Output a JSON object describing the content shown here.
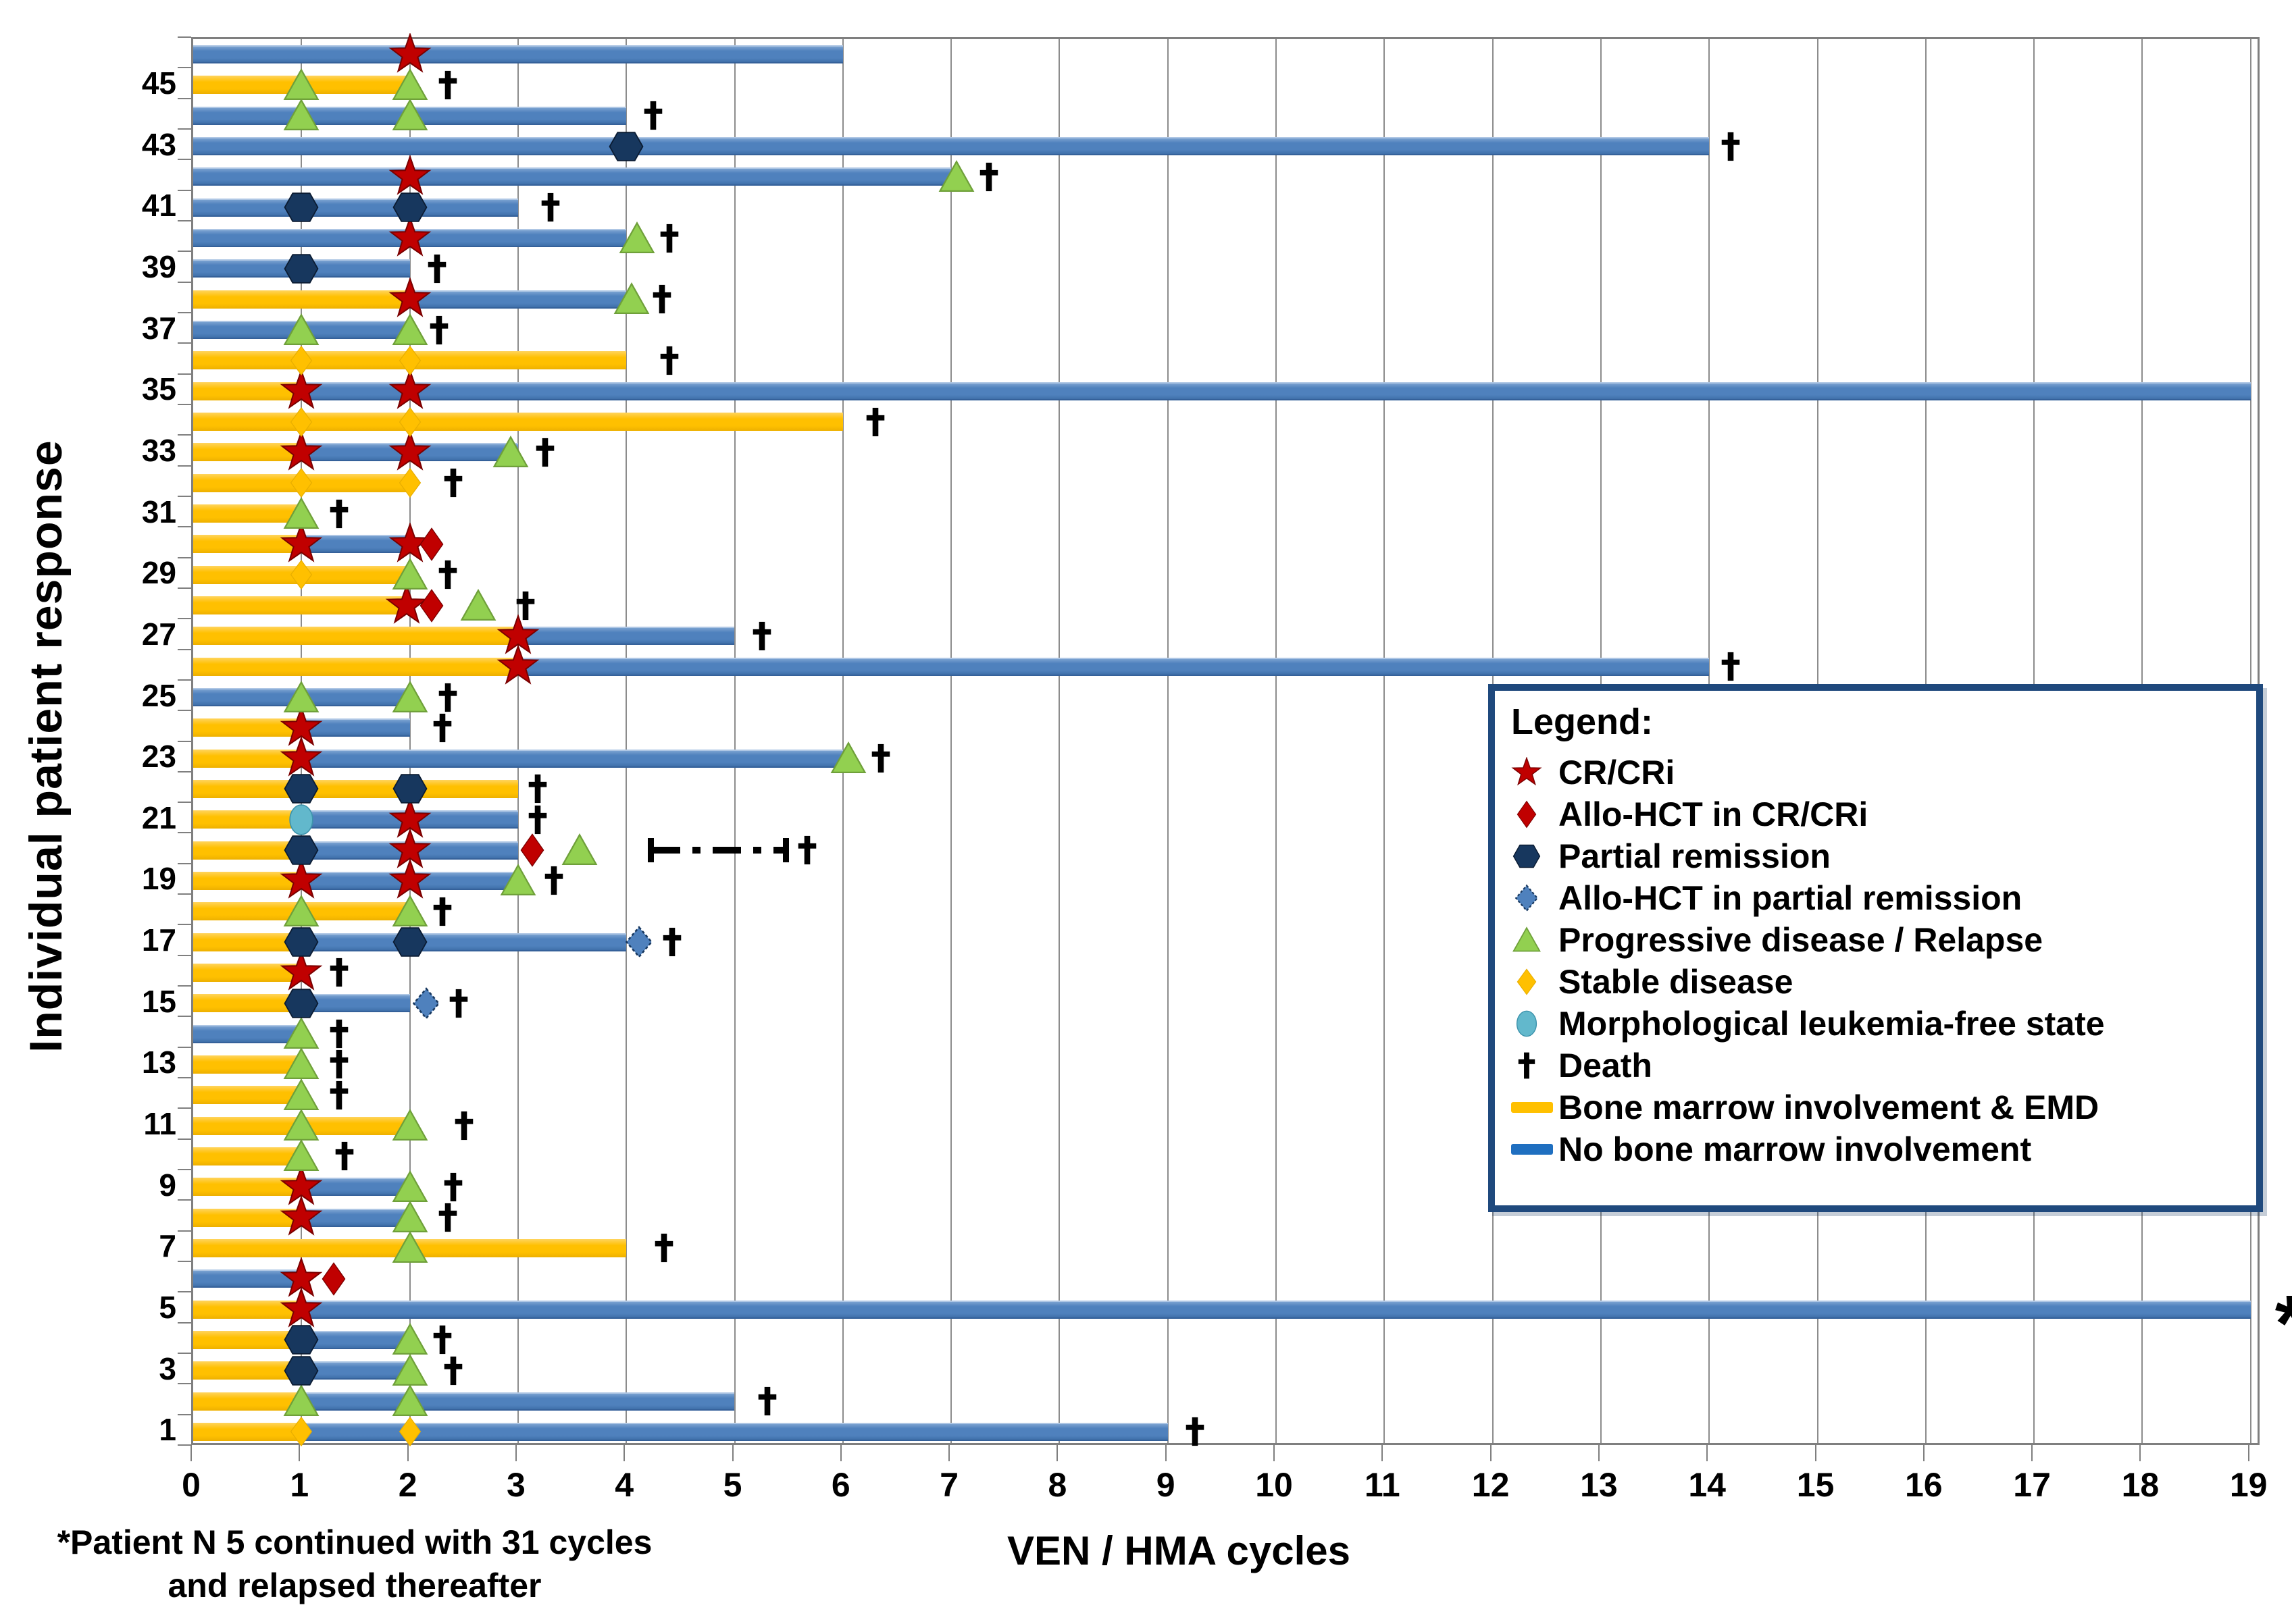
{
  "chart_data": {
    "type": "bar",
    "variant": "swimmer-plot",
    "title": "",
    "xlabel": "VEN / HMA cycles",
    "ylabel": "Individual patient response",
    "xlim": [
      0,
      19
    ],
    "grid": "vertical-on",
    "x_ticks": [
      0,
      1,
      2,
      3,
      4,
      5,
      6,
      7,
      8,
      9,
      10,
      11,
      12,
      13,
      14,
      15,
      16,
      17,
      18,
      19
    ],
    "y_tick_labels": [
      1,
      3,
      5,
      7,
      9,
      11,
      13,
      15,
      17,
      19,
      21,
      23,
      25,
      27,
      29,
      31,
      33,
      35,
      37,
      39,
      41,
      43,
      45
    ],
    "footnote_line1": "*Patient N 5 continued with 31 cycles",
    "footnote_line2": "and relapsed thereafter",
    "legend": {
      "title": "Legend:",
      "items": [
        {
          "marker": "cr",
          "label": "CR/CRi"
        },
        {
          "marker": "hct_cr",
          "label": "Allo-HCT in CR/CRi"
        },
        {
          "marker": "pr",
          "label": "Partial remission"
        },
        {
          "marker": "hct_pr",
          "label": "Allo-HCT in partial remission"
        },
        {
          "marker": "pd",
          "label": "Progressive disease / Relapse"
        },
        {
          "marker": "sd",
          "label": "Stable disease"
        },
        {
          "marker": "mlfs",
          "label": "Morphological leukemia-free state"
        },
        {
          "marker": "death",
          "label": "Death"
        },
        {
          "marker": "emd_bar",
          "label": "Bone marrow involvement & EMD"
        },
        {
          "marker": "nbm_bar",
          "label": "No bone marrow involvement"
        }
      ]
    },
    "colors": {
      "bar_no_bone_marrow": "#4F81BD",
      "bar_bone_marrow_emd": "#FFC000",
      "legend_nbm_swatch": "#1F6FC0",
      "cr_star": "#C00000",
      "hct_cr_diamond": "#C00000",
      "pr_hexagon": "#17375E",
      "hct_pr_diamond": "#4F81BD",
      "pd_triangle": "#92D050",
      "sd_diamond": "#FFC000",
      "mlfs_circle": "#62B8CC",
      "death_cross": "#000000",
      "gridline": "#8C8C8C",
      "legend_border": "#1F497D"
    },
    "patients": [
      {
        "id": 1,
        "segments": [
          [
            "emd",
            0,
            1
          ],
          [
            "nbm",
            1,
            9
          ]
        ],
        "markers": [
          [
            "sd",
            1
          ],
          [
            "sd",
            2
          ],
          [
            "death",
            9.25
          ]
        ]
      },
      {
        "id": 2,
        "segments": [
          [
            "emd",
            0,
            1
          ],
          [
            "nbm",
            1,
            5
          ]
        ],
        "markers": [
          [
            "pd",
            1
          ],
          [
            "pd",
            2
          ],
          [
            "death",
            5.3
          ]
        ]
      },
      {
        "id": 3,
        "segments": [
          [
            "emd",
            0,
            1
          ],
          [
            "nbm",
            1,
            2
          ]
        ],
        "markers": [
          [
            "pr",
            1
          ],
          [
            "pd",
            2
          ],
          [
            "death",
            2.4
          ]
        ]
      },
      {
        "id": 4,
        "segments": [
          [
            "emd",
            0,
            1
          ],
          [
            "nbm",
            1,
            2
          ]
        ],
        "markers": [
          [
            "pr",
            1
          ],
          [
            "pd",
            2
          ],
          [
            "death",
            2.3
          ]
        ]
      },
      {
        "id": 5,
        "segments": [
          [
            "emd",
            0,
            1
          ],
          [
            "nbm",
            1,
            19
          ]
        ],
        "markers": [
          [
            "cr",
            1
          ],
          [
            "asterisk",
            19.35
          ]
        ]
      },
      {
        "id": 6,
        "segments": [
          [
            "nbm",
            0,
            1
          ]
        ],
        "markers": [
          [
            "cr",
            1
          ],
          [
            "hct_cr",
            1.3
          ]
        ]
      },
      {
        "id": 7,
        "segments": [
          [
            "emd",
            0,
            4
          ]
        ],
        "markers": [
          [
            "pd",
            2
          ],
          [
            "death",
            4.35
          ]
        ]
      },
      {
        "id": 8,
        "segments": [
          [
            "emd",
            0,
            1
          ],
          [
            "nbm",
            1,
            2
          ]
        ],
        "markers": [
          [
            "cr",
            1
          ],
          [
            "pd",
            2
          ],
          [
            "death",
            2.35
          ]
        ]
      },
      {
        "id": 9,
        "segments": [
          [
            "emd",
            0,
            1
          ],
          [
            "nbm",
            1,
            2
          ]
        ],
        "markers": [
          [
            "cr",
            1
          ],
          [
            "pd",
            2
          ],
          [
            "death",
            2.4
          ]
        ]
      },
      {
        "id": 10,
        "segments": [
          [
            "emd",
            0,
            1
          ]
        ],
        "markers": [
          [
            "pd",
            1
          ],
          [
            "death",
            1.4
          ]
        ]
      },
      {
        "id": 11,
        "segments": [
          [
            "emd",
            0,
            2
          ]
        ],
        "markers": [
          [
            "pd",
            1
          ],
          [
            "pd",
            2
          ],
          [
            "death",
            2.5
          ]
        ]
      },
      {
        "id": 12,
        "segments": [
          [
            "emd",
            0,
            1
          ]
        ],
        "markers": [
          [
            "pd",
            1
          ],
          [
            "death",
            1.35
          ]
        ]
      },
      {
        "id": 13,
        "segments": [
          [
            "emd",
            0,
            1
          ]
        ],
        "markers": [
          [
            "pd",
            1
          ],
          [
            "death",
            1.35
          ]
        ]
      },
      {
        "id": 14,
        "segments": [
          [
            "nbm",
            0,
            1
          ]
        ],
        "markers": [
          [
            "pd",
            1
          ],
          [
            "death",
            1.35
          ]
        ]
      },
      {
        "id": 15,
        "segments": [
          [
            "emd",
            0,
            1
          ],
          [
            "nbm",
            1,
            2
          ]
        ],
        "markers": [
          [
            "pr",
            1
          ],
          [
            "hct_pr",
            2.15
          ],
          [
            "death",
            2.45
          ]
        ]
      },
      {
        "id": 16,
        "segments": [
          [
            "emd",
            0,
            1
          ]
        ],
        "markers": [
          [
            "cr",
            1
          ],
          [
            "death",
            1.35
          ]
        ]
      },
      {
        "id": 17,
        "segments": [
          [
            "emd",
            0,
            1
          ],
          [
            "nbm",
            1,
            4
          ]
        ],
        "markers": [
          [
            "pr",
            1
          ],
          [
            "pr",
            2
          ],
          [
            "hct_pr",
            4.12
          ],
          [
            "death",
            4.42
          ]
        ]
      },
      {
        "id": 18,
        "segments": [
          [
            "emd",
            0,
            2
          ]
        ],
        "markers": [
          [
            "pd",
            1
          ],
          [
            "pd",
            2
          ],
          [
            "death",
            2.3
          ]
        ]
      },
      {
        "id": 19,
        "segments": [
          [
            "emd",
            0,
            1
          ],
          [
            "nbm",
            1,
            3
          ]
        ],
        "markers": [
          [
            "cr",
            1
          ],
          [
            "cr",
            2
          ],
          [
            "pd",
            3
          ],
          [
            "death",
            3.33
          ]
        ]
      },
      {
        "id": 20,
        "segments": [
          [
            "emd",
            0,
            1
          ],
          [
            "nbm",
            1,
            3
          ]
        ],
        "markers": [
          [
            "pr",
            1
          ],
          [
            "cr",
            2
          ],
          [
            "hct_cr",
            3.13
          ],
          [
            "pd",
            3.57
          ],
          [
            "censor",
            4.2,
            5.5
          ],
          [
            "death",
            5.67
          ]
        ]
      },
      {
        "id": 21,
        "segments": [
          [
            "emd",
            0,
            1
          ],
          [
            "nbm",
            1,
            3
          ]
        ],
        "markers": [
          [
            "mlfs",
            1
          ],
          [
            "cr",
            2
          ],
          [
            "death",
            3.18
          ]
        ]
      },
      {
        "id": 22,
        "segments": [
          [
            "emd",
            0,
            3
          ]
        ],
        "markers": [
          [
            "pr",
            1
          ],
          [
            "pr",
            2
          ],
          [
            "death",
            3.18
          ]
        ]
      },
      {
        "id": 23,
        "segments": [
          [
            "emd",
            0,
            1
          ],
          [
            "nbm",
            1,
            6
          ]
        ],
        "markers": [
          [
            "cr",
            1
          ],
          [
            "pd",
            6.05
          ],
          [
            "death",
            6.35
          ]
        ]
      },
      {
        "id": 24,
        "segments": [
          [
            "emd",
            0,
            1
          ],
          [
            "nbm",
            1,
            2
          ]
        ],
        "markers": [
          [
            "cr",
            1
          ],
          [
            "death",
            2.3
          ]
        ]
      },
      {
        "id": 25,
        "segments": [
          [
            "nbm",
            0,
            2
          ]
        ],
        "markers": [
          [
            "pd",
            1
          ],
          [
            "pd",
            2
          ],
          [
            "death",
            2.35
          ]
        ]
      },
      {
        "id": 26,
        "segments": [
          [
            "emd",
            0,
            3
          ],
          [
            "nbm",
            3,
            14
          ]
        ],
        "markers": [
          [
            "cr",
            3
          ],
          [
            "death",
            14.2
          ]
        ]
      },
      {
        "id": 27,
        "segments": [
          [
            "emd",
            0,
            3
          ],
          [
            "nbm",
            3,
            5
          ]
        ],
        "markers": [
          [
            "cr",
            3
          ],
          [
            "death",
            5.25
          ]
        ]
      },
      {
        "id": 28,
        "segments": [
          [
            "emd",
            0,
            2
          ]
        ],
        "markers": [
          [
            "cr",
            1.97
          ],
          [
            "hct_cr",
            2.2
          ],
          [
            "pd",
            2.63
          ],
          [
            "death",
            3.07
          ]
        ]
      },
      {
        "id": 29,
        "segments": [
          [
            "emd",
            0,
            2
          ]
        ],
        "markers": [
          [
            "sd",
            1
          ],
          [
            "pd",
            2
          ],
          [
            "death",
            2.35
          ]
        ]
      },
      {
        "id": 30,
        "segments": [
          [
            "emd",
            0,
            1
          ],
          [
            "nbm",
            1,
            2
          ]
        ],
        "markers": [
          [
            "cr",
            1
          ],
          [
            "cr",
            2
          ],
          [
            "hct_cr",
            2.2
          ]
        ]
      },
      {
        "id": 31,
        "segments": [
          [
            "emd",
            0,
            1
          ]
        ],
        "markers": [
          [
            "pd",
            1
          ],
          [
            "death",
            1.35
          ]
        ]
      },
      {
        "id": 32,
        "segments": [
          [
            "emd",
            0,
            2
          ]
        ],
        "markers": [
          [
            "sd",
            1
          ],
          [
            "sd",
            2
          ],
          [
            "death",
            2.4
          ]
        ]
      },
      {
        "id": 33,
        "segments": [
          [
            "emd",
            0,
            1
          ],
          [
            "nbm",
            1,
            3
          ]
        ],
        "markers": [
          [
            "cr",
            1
          ],
          [
            "cr",
            2
          ],
          [
            "pd",
            2.93
          ],
          [
            "death",
            3.25
          ]
        ]
      },
      {
        "id": 34,
        "segments": [
          [
            "emd",
            0,
            6
          ]
        ],
        "markers": [
          [
            "sd",
            1
          ],
          [
            "sd",
            2
          ],
          [
            "death",
            6.3
          ]
        ]
      },
      {
        "id": 35,
        "segments": [
          [
            "emd",
            0,
            1
          ],
          [
            "nbm",
            1,
            19
          ]
        ],
        "markers": [
          [
            "cr",
            1
          ],
          [
            "cr",
            2
          ]
        ]
      },
      {
        "id": 36,
        "segments": [
          [
            "emd",
            0,
            4
          ]
        ],
        "markers": [
          [
            "sd",
            1
          ],
          [
            "sd",
            2
          ],
          [
            "death",
            4.4
          ]
        ]
      },
      {
        "id": 37,
        "segments": [
          [
            "nbm",
            0,
            2
          ]
        ],
        "markers": [
          [
            "pd",
            1
          ],
          [
            "pd",
            2
          ],
          [
            "death",
            2.27
          ]
        ]
      },
      {
        "id": 38,
        "segments": [
          [
            "emd",
            0,
            2
          ],
          [
            "nbm",
            2,
            4
          ]
        ],
        "markers": [
          [
            "cr",
            2
          ],
          [
            "pd",
            4.05
          ],
          [
            "death",
            4.33
          ]
        ]
      },
      {
        "id": 39,
        "segments": [
          [
            "nbm",
            0,
            2
          ]
        ],
        "markers": [
          [
            "pr",
            1
          ],
          [
            "death",
            2.25
          ]
        ]
      },
      {
        "id": 40,
        "segments": [
          [
            "nbm",
            0,
            4
          ]
        ],
        "markers": [
          [
            "cr",
            2
          ],
          [
            "pd",
            4.1
          ],
          [
            "death",
            4.4
          ]
        ]
      },
      {
        "id": 41,
        "segments": [
          [
            "nbm",
            0,
            3
          ]
        ],
        "markers": [
          [
            "pr",
            1
          ],
          [
            "pr",
            2
          ],
          [
            "death",
            3.3
          ]
        ]
      },
      {
        "id": 42,
        "segments": [
          [
            "nbm",
            0,
            7
          ]
        ],
        "markers": [
          [
            "cr",
            2
          ],
          [
            "pd",
            7.05
          ],
          [
            "death",
            7.35
          ]
        ]
      },
      {
        "id": 43,
        "segments": [
          [
            "nbm",
            0,
            14
          ]
        ],
        "markers": [
          [
            "pr",
            4
          ],
          [
            "death",
            14.2
          ]
        ]
      },
      {
        "id": 44,
        "segments": [
          [
            "nbm",
            0,
            4
          ]
        ],
        "markers": [
          [
            "pd",
            1
          ],
          [
            "pd",
            2
          ],
          [
            "death",
            4.25
          ]
        ]
      },
      {
        "id": 45,
        "segments": [
          [
            "emd",
            0,
            2
          ]
        ],
        "markers": [
          [
            "pd",
            1
          ],
          [
            "pd",
            2
          ],
          [
            "death",
            2.35
          ]
        ]
      },
      {
        "id": 46,
        "segments": [
          [
            "nbm",
            0,
            6
          ]
        ],
        "markers": [
          [
            "cr",
            2
          ]
        ]
      }
    ]
  }
}
